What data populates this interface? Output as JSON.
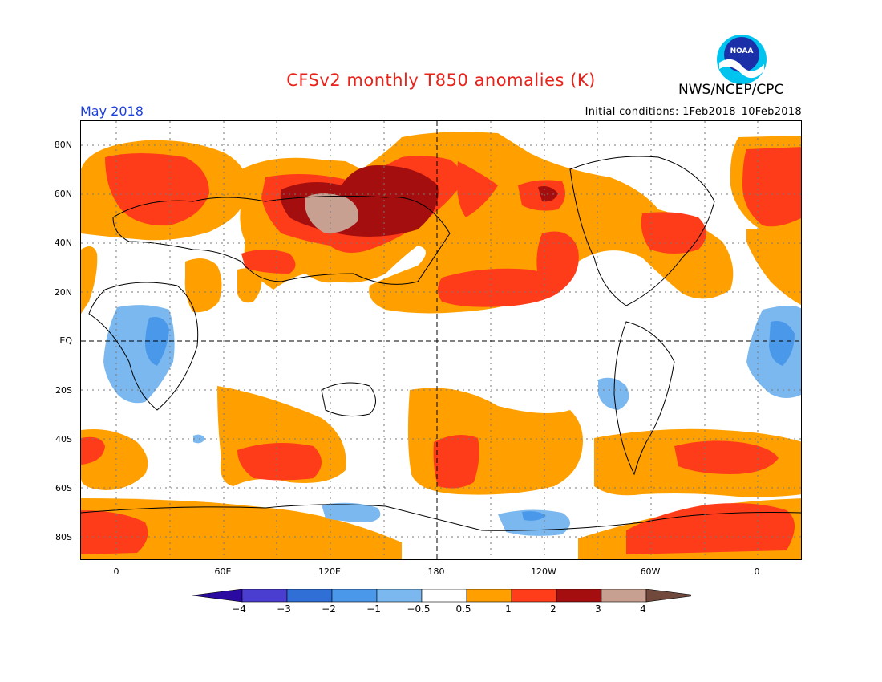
{
  "title": "CFSv2 monthly T850 anomalies (K)",
  "agency": "NWS/NCEP/CPC",
  "logo_text": "NOAA",
  "period": "May 2018",
  "initial_conditions": "Initial conditions: 1Feb2018–10Feb2018",
  "lat_labels": [
    "80N",
    "60N",
    "40N",
    "20N",
    "EQ",
    "20S",
    "40S",
    "60S",
    "80S"
  ],
  "lon_labels": [
    "0",
    "60E",
    "120E",
    "180",
    "120W",
    "60W",
    "0"
  ],
  "colorbar": {
    "labels": [
      "−4",
      "−3",
      "−2",
      "−1",
      "−0.5",
      "0.5",
      "1",
      "2",
      "3",
      "4"
    ],
    "colors": [
      "#2a0aa0",
      "#4a3ed0",
      "#2f6fd6",
      "#4a98ea",
      "#7cb8f0",
      "#ffffff",
      "#ff9f00",
      "#ff3d1a",
      "#a50e0e",
      "#c8a092",
      "#70483c"
    ]
  },
  "anomaly_colors": {
    "warm_0_5_to_1": "#ffa000",
    "warm_1_to_2": "#ff3c1a",
    "warm_2_to_3": "#a50e0e",
    "warm_3_to_4": "#c8a092",
    "cool_minus1_to_minus0_5": "#7cb8f0",
    "cool_minus2_to_minus1": "#4a98ea"
  }
}
